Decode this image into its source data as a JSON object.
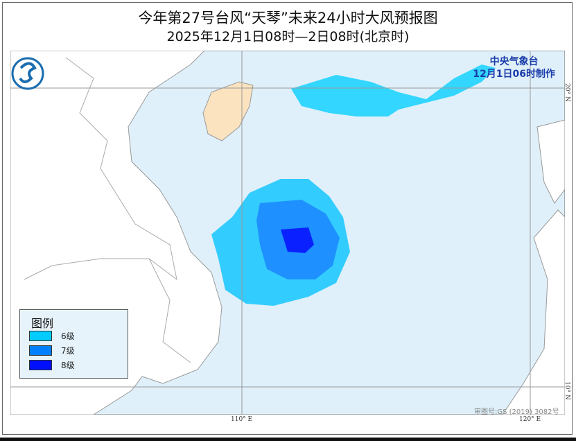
{
  "title": "今年第27号台风“天琴”未来24小时大风预报图",
  "subtitle": "2025年12月1日08时—2日08时(北京时)",
  "organization": "中央气象台",
  "issued": "12月1日06时制作",
  "legend": {
    "title": "图例",
    "items": [
      {
        "label": "6级",
        "color": "#00ccff"
      },
      {
        "label": "7级",
        "color": "#0080ff"
      },
      {
        "label": "8级",
        "color": "#0010ff"
      }
    ]
  },
  "axes": {
    "lon": [
      "110° E",
      "120° E"
    ],
    "lat": [
      "20° N",
      "10° N"
    ]
  },
  "approval_number": "审图号:GS (2019) 3082号",
  "colors": {
    "sea": "#dff0fa",
    "land": "#ffffff",
    "hainan": "#fbe3c0",
    "border": "#888888"
  }
}
